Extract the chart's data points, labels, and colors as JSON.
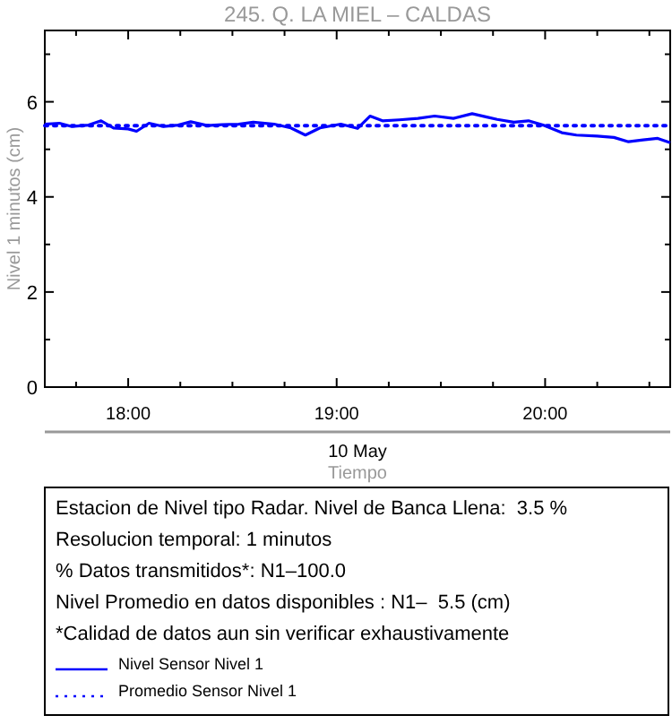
{
  "chart_data": {
    "type": "line",
    "title": "245. Q. LA MIEL – CALDAS",
    "xlabel": "Tiempo",
    "ylabel": "Nivel 1 minutos (cm)",
    "xlim": [
      17.6,
      20.6
    ],
    "ylim": [
      0,
      7.5
    ],
    "xticks": [
      {
        "value": 17.75,
        "label": null
      },
      {
        "value": 18,
        "label": "18:00"
      },
      {
        "value": 18.25,
        "label": null
      },
      {
        "value": 18.5,
        "label": null
      },
      {
        "value": 18.75,
        "label": null
      },
      {
        "value": 19,
        "label": "19:00"
      },
      {
        "value": 19.25,
        "label": null
      },
      {
        "value": 19.5,
        "label": null
      },
      {
        "value": 19.75,
        "label": null
      },
      {
        "value": 20,
        "label": "20:00"
      },
      {
        "value": 20.25,
        "label": null
      },
      {
        "value": 20.5,
        "label": null
      }
    ],
    "yticks": [
      0,
      {
        "value": 1,
        "label": null
      },
      2,
      {
        "value": 3,
        "label": null
      },
      4,
      {
        "value": 5,
        "label": null
      },
      6,
      {
        "value": 7,
        "label": null
      }
    ],
    "grid": false,
    "legend": "bottom",
    "series": [
      {
        "name": "Nivel Sensor Nivel 1",
        "color": "#0000ff",
        "line_style": "solid",
        "x": [
          17.6,
          17.67,
          17.73,
          17.81,
          17.87,
          17.93,
          18.0,
          18.04,
          18.1,
          18.17,
          18.24,
          18.3,
          18.38,
          18.45,
          18.53,
          18.6,
          18.7,
          18.78,
          18.85,
          18.92,
          19.02,
          19.1,
          19.16,
          19.22,
          19.3,
          19.39,
          19.47,
          19.56,
          19.65,
          19.72,
          19.77,
          19.85,
          19.92,
          19.99,
          20.08,
          20.15,
          20.25,
          20.33,
          20.4,
          20.47,
          20.54,
          20.6
        ],
        "values": [
          5.53,
          5.55,
          5.48,
          5.51,
          5.6,
          5.45,
          5.43,
          5.38,
          5.55,
          5.48,
          5.51,
          5.58,
          5.5,
          5.52,
          5.53,
          5.57,
          5.53,
          5.45,
          5.3,
          5.45,
          5.53,
          5.44,
          5.7,
          5.6,
          5.62,
          5.65,
          5.7,
          5.65,
          5.75,
          5.68,
          5.63,
          5.57,
          5.6,
          5.51,
          5.35,
          5.3,
          5.28,
          5.25,
          5.16,
          5.2,
          5.23,
          5.14
        ]
      },
      {
        "name": "Promedio Sensor Nivel 1",
        "color": "#0000ff",
        "line_style": "dotted",
        "x": [
          17.6,
          20.6
        ],
        "values": [
          5.5,
          5.5
        ]
      }
    ],
    "annotations": [
      "10 May",
      "Estacion de Nivel tipo Radar. Nivel de Banca Llena:  3.5 %",
      "Resolucion temporal: 1 minutos",
      "% Datos transmitidos*: N1–100.0",
      "Nivel Promedio en datos disponibles : N1–  5.5 (cm)",
      "*Calidad de datos aun sin verificar exhaustivamente"
    ]
  }
}
